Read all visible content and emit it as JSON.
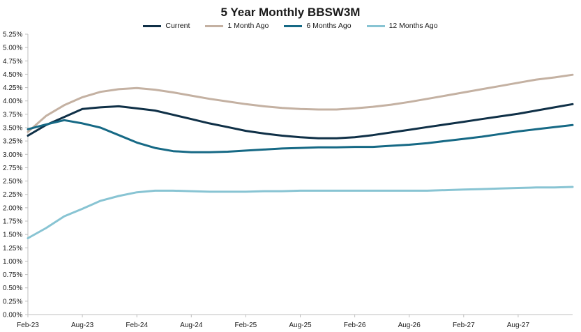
{
  "chart_data": {
    "type": "line",
    "title": "5 Year Monthly BBSW3M",
    "xlabel": "",
    "ylabel": "",
    "ylim": [
      0,
      5.25
    ],
    "y_ticks": [
      "0.00%",
      "0.25%",
      "0.50%",
      "0.75%",
      "1.00%",
      "1.25%",
      "1.50%",
      "1.75%",
      "2.00%",
      "2.25%",
      "2.50%",
      "2.75%",
      "3.00%",
      "3.25%",
      "3.50%",
      "3.75%",
      "4.00%",
      "4.25%",
      "4.50%",
      "4.75%",
      "5.00%",
      "5.25%"
    ],
    "x_ticks": [
      "Feb-23",
      "Aug-23",
      "Feb-24",
      "Aug-24",
      "Feb-25",
      "Aug-25",
      "Feb-26",
      "Aug-26",
      "Feb-27",
      "Aug-27"
    ],
    "x_range": [
      0,
      58
    ],
    "legend_position": "top-center",
    "series": [
      {
        "name": "Current",
        "color": "#0f3047",
        "points": [
          [
            0,
            3.35
          ],
          [
            2,
            3.55
          ],
          [
            4,
            3.7
          ],
          [
            6,
            3.85
          ],
          [
            8,
            3.88
          ],
          [
            10,
            3.9
          ],
          [
            12,
            3.86
          ],
          [
            14,
            3.82
          ],
          [
            16,
            3.74
          ],
          [
            18,
            3.66
          ],
          [
            20,
            3.58
          ],
          [
            22,
            3.51
          ],
          [
            24,
            3.44
          ],
          [
            26,
            3.39
          ],
          [
            28,
            3.35
          ],
          [
            30,
            3.32
          ],
          [
            32,
            3.3
          ],
          [
            34,
            3.3
          ],
          [
            36,
            3.32
          ],
          [
            38,
            3.36
          ],
          [
            40,
            3.41
          ],
          [
            42,
            3.46
          ],
          [
            44,
            3.51
          ],
          [
            46,
            3.56
          ],
          [
            48,
            3.61
          ],
          [
            50,
            3.66
          ],
          [
            52,
            3.71
          ],
          [
            54,
            3.76
          ],
          [
            56,
            3.82
          ],
          [
            58,
            3.88
          ],
          [
            60,
            3.94
          ]
        ]
      },
      {
        "name": "1 Month Ago",
        "color": "#c4b1a2",
        "points": [
          [
            0,
            3.42
          ],
          [
            2,
            3.72
          ],
          [
            4,
            3.92
          ],
          [
            6,
            4.07
          ],
          [
            8,
            4.17
          ],
          [
            10,
            4.22
          ],
          [
            12,
            4.24
          ],
          [
            14,
            4.21
          ],
          [
            16,
            4.16
          ],
          [
            18,
            4.1
          ],
          [
            20,
            4.04
          ],
          [
            22,
            3.99
          ],
          [
            24,
            3.94
          ],
          [
            26,
            3.9
          ],
          [
            28,
            3.87
          ],
          [
            30,
            3.85
          ],
          [
            32,
            3.84
          ],
          [
            34,
            3.84
          ],
          [
            36,
            3.86
          ],
          [
            38,
            3.89
          ],
          [
            40,
            3.93
          ],
          [
            42,
            3.98
          ],
          [
            44,
            4.04
          ],
          [
            46,
            4.1
          ],
          [
            48,
            4.16
          ],
          [
            50,
            4.22
          ],
          [
            52,
            4.28
          ],
          [
            54,
            4.34
          ],
          [
            56,
            4.4
          ],
          [
            58,
            4.44
          ],
          [
            60,
            4.49
          ]
        ]
      },
      {
        "name": "6 Months Ago",
        "color": "#166985",
        "points": [
          [
            0,
            3.47
          ],
          [
            2,
            3.56
          ],
          [
            4,
            3.64
          ],
          [
            6,
            3.58
          ],
          [
            8,
            3.5
          ],
          [
            10,
            3.36
          ],
          [
            12,
            3.22
          ],
          [
            14,
            3.12
          ],
          [
            16,
            3.06
          ],
          [
            18,
            3.04
          ],
          [
            20,
            3.04
          ],
          [
            22,
            3.05
          ],
          [
            24,
            3.07
          ],
          [
            26,
            3.09
          ],
          [
            28,
            3.11
          ],
          [
            30,
            3.12
          ],
          [
            32,
            3.13
          ],
          [
            34,
            3.13
          ],
          [
            36,
            3.14
          ],
          [
            38,
            3.14
          ],
          [
            40,
            3.16
          ],
          [
            42,
            3.18
          ],
          [
            44,
            3.21
          ],
          [
            46,
            3.25
          ],
          [
            48,
            3.29
          ],
          [
            50,
            3.33
          ],
          [
            52,
            3.38
          ],
          [
            54,
            3.43
          ],
          [
            56,
            3.47
          ],
          [
            58,
            3.51
          ],
          [
            60,
            3.55
          ]
        ]
      },
      {
        "name": "12 Months Ago",
        "color": "#88c4d3",
        "points": [
          [
            0,
            1.43
          ],
          [
            2,
            1.62
          ],
          [
            4,
            1.84
          ],
          [
            6,
            1.98
          ],
          [
            8,
            2.13
          ],
          [
            10,
            2.22
          ],
          [
            12,
            2.29
          ],
          [
            14,
            2.32
          ],
          [
            16,
            2.32
          ],
          [
            18,
            2.31
          ],
          [
            20,
            2.3
          ],
          [
            22,
            2.3
          ],
          [
            24,
            2.3
          ],
          [
            26,
            2.31
          ],
          [
            28,
            2.31
          ],
          [
            30,
            2.32
          ],
          [
            32,
            2.32
          ],
          [
            34,
            2.32
          ],
          [
            36,
            2.32
          ],
          [
            38,
            2.32
          ],
          [
            40,
            2.32
          ],
          [
            42,
            2.32
          ],
          [
            44,
            2.32
          ],
          [
            46,
            2.33
          ],
          [
            48,
            2.34
          ],
          [
            50,
            2.35
          ],
          [
            52,
            2.36
          ],
          [
            54,
            2.37
          ],
          [
            56,
            2.38
          ],
          [
            58,
            2.38
          ],
          [
            60,
            2.39
          ]
        ]
      }
    ]
  }
}
